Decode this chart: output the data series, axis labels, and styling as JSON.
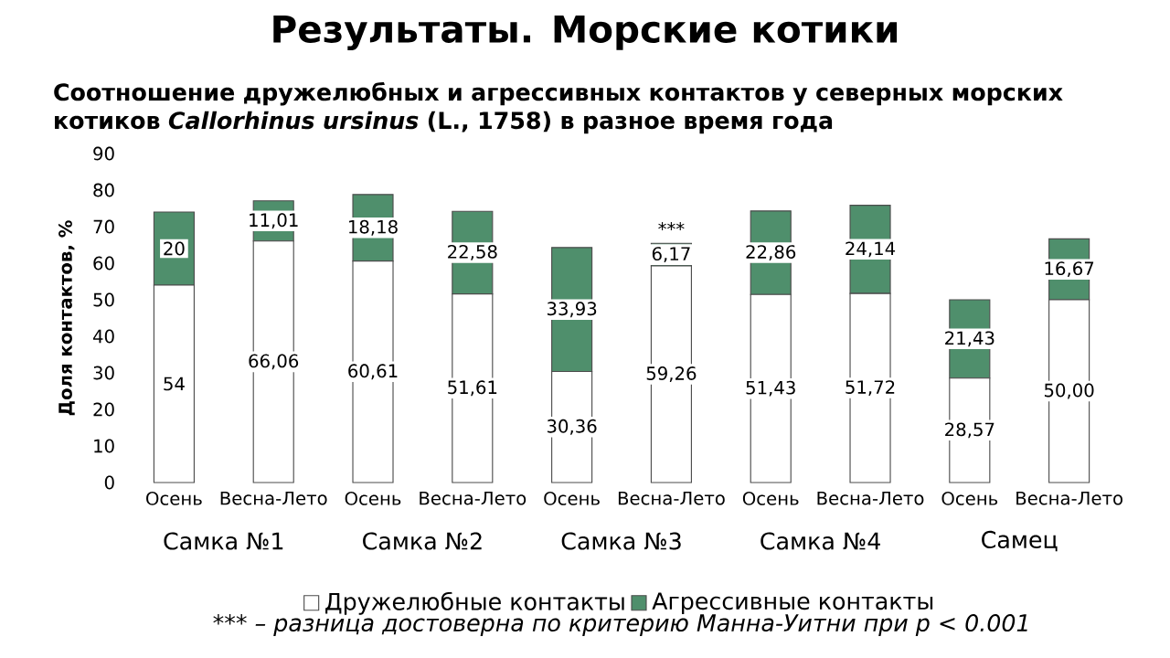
{
  "chart_data": {
    "type": "bar",
    "stacked": true,
    "title": "Результаты. Морские котики",
    "subtitle": "Соотношение дружелюбных и агрессивных контактов у северных морских котиков *Callorhinus ursinus* (L., 1758) в разное время года",
    "ylabel": "Доля контактов, %",
    "categories": [
      "Осень",
      "Весна-Лето",
      "Осень",
      "Весна-Лето",
      "Осень",
      "Весна-Лето",
      "Осень",
      "Весна-Лето",
      "Осень",
      "Весна-Лето"
    ],
    "series": [
      {
        "name": "Дружелюбные контакты",
        "color": "#ffffff",
        "values": [
          54,
          66.06,
          60.61,
          51.61,
          30.36,
          59.26,
          51.43,
          51.72,
          28.57,
          50.0
        ],
        "value_labels": [
          "54",
          "66,06",
          "60,61",
          "51,61",
          "30,36",
          "59,26",
          "51,43",
          "51,72",
          "28,57",
          "50,00"
        ]
      },
      {
        "name": "Агрессивные контакты",
        "color": "#4f8f6c",
        "values": [
          20,
          11.01,
          18.18,
          22.58,
          33.93,
          6.17,
          22.86,
          24.14,
          21.43,
          16.67
        ],
        "value_labels": [
          "20",
          "11,01",
          "18,18",
          "22,58",
          "33,93",
          "6,17",
          "22,86",
          "24,14",
          "21,43",
          "16,67"
        ]
      }
    ],
    "ylim": [
      0,
      90
    ],
    "yticks": [
      0,
      10,
      20,
      30,
      40,
      50,
      60,
      70,
      80,
      90
    ],
    "legend": "bottom",
    "annotations": [
      "Самка №1",
      "Самка №2",
      "Самка №3",
      "Самка №4",
      "Самец",
      "***",
      "*** – разница достоверна по критерию Манна-Уитни при p < 0.001"
    ]
  }
}
